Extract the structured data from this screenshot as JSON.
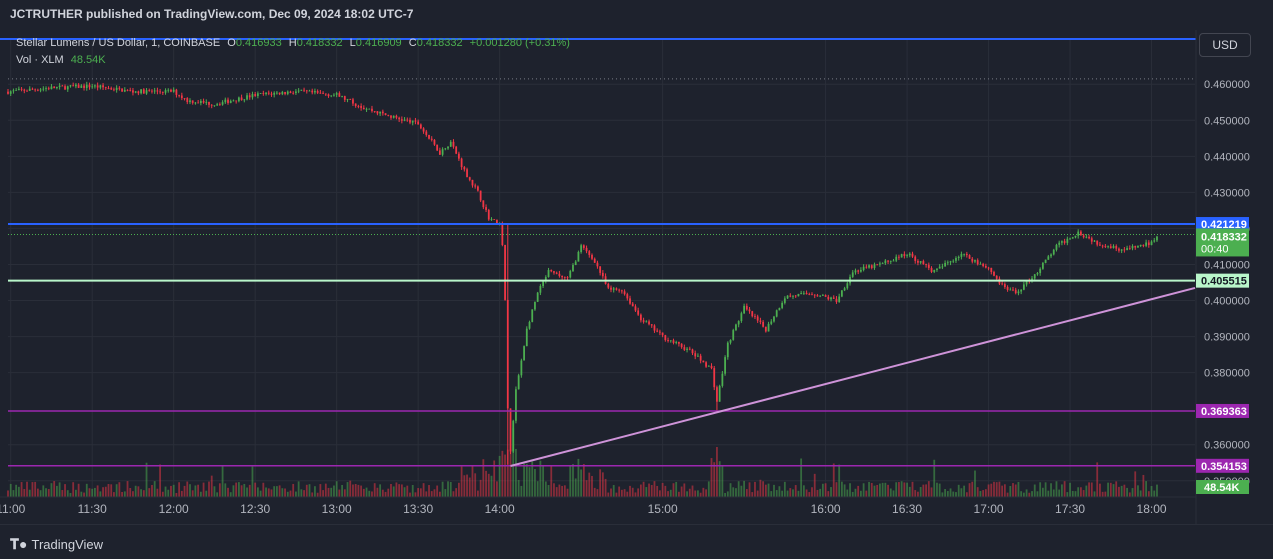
{
  "header": {
    "published": "JCTRUTHER published on TradingView.com, Dec 09, 2024 18:02 UTC-7"
  },
  "legend": {
    "symbol": "Stellar Lumens / US Dollar, 1, COINBASE",
    "o_label": "O",
    "o_value": "0.416933",
    "h_label": "H",
    "h_value": "0.418332",
    "l_label": "L",
    "l_value": "0.416909",
    "c_label": "C",
    "c_value": "0.418332",
    "change": "+0.001280 (+0.31%)",
    "vol_label": "Vol · XLM",
    "vol_value": "48.54K"
  },
  "currency_button": "USD",
  "footer": {
    "brand": "TradingView",
    "brand_icon": "tradingview-logo-icon"
  },
  "colors": {
    "up": "#4caf50",
    "down": "#f23645",
    "background": "#1e222d",
    "blue_line": "#2962ff",
    "green_line": "#b9f6ca",
    "purple_line": "#9c27b0",
    "trend_line": "#ce93d8"
  },
  "chart_data": {
    "type": "candlestick",
    "title": "Stellar Lumens / US Dollar, 1, COINBASE",
    "x_ticks": [
      "11:00",
      "11:30",
      "12:00",
      "12:30",
      "13:00",
      "13:30",
      "14:00",
      "15:00",
      "16:00",
      "16:30",
      "17:00",
      "17:30",
      "18:00"
    ],
    "y_ticks": [
      "0.460000",
      "0.450000",
      "0.440000",
      "0.430000",
      "0.420000",
      "0.410000",
      "0.400000",
      "0.390000",
      "0.380000",
      "0.360000",
      "0.350000"
    ],
    "ylim": [
      0.3455,
      0.4645
    ],
    "xlim": [
      "10:59",
      "18:16"
    ],
    "price_path": [
      [
        "11:00",
        0.458
      ],
      [
        "11:15",
        0.459
      ],
      [
        "11:30",
        0.4595
      ],
      [
        "11:45",
        0.458
      ],
      [
        "12:00",
        0.458
      ],
      [
        "12:05",
        0.4555
      ],
      [
        "12:15",
        0.4545
      ],
      [
        "12:30",
        0.457
      ],
      [
        "12:45",
        0.458
      ],
      [
        "13:00",
        0.457
      ],
      [
        "13:10",
        0.4535
      ],
      [
        "13:20",
        0.451
      ],
      [
        "13:30",
        0.449
      ],
      [
        "13:38",
        0.441
      ],
      [
        "13:42",
        0.444
      ],
      [
        "13:47",
        0.436
      ],
      [
        "13:52",
        0.43
      ],
      [
        "13:56",
        0.423
      ],
      [
        "14:00",
        0.421
      ],
      [
        "14:01",
        0.415
      ],
      [
        "14:02",
        0.4
      ],
      [
        "14:03",
        0.37
      ],
      [
        "14:04",
        0.358
      ],
      [
        "14:06",
        0.375
      ],
      [
        "14:10",
        0.392
      ],
      [
        "14:14",
        0.402
      ],
      [
        "14:18",
        0.408
      ],
      [
        "14:25",
        0.406
      ],
      [
        "14:30",
        0.415
      ],
      [
        "14:35",
        0.411
      ],
      [
        "14:40",
        0.403
      ],
      [
        "14:45",
        0.403
      ],
      [
        "14:52",
        0.395
      ],
      [
        "15:00",
        0.39
      ],
      [
        "15:10",
        0.386
      ],
      [
        "15:18",
        0.381
      ],
      [
        "15:20",
        0.372
      ],
      [
        "15:24",
        0.388
      ],
      [
        "15:30",
        0.398
      ],
      [
        "15:38",
        0.392
      ],
      [
        "15:45",
        0.401
      ],
      [
        "15:55",
        0.402
      ],
      [
        "16:04",
        0.4
      ],
      [
        "16:10",
        0.408
      ],
      [
        "16:20",
        0.41
      ],
      [
        "16:30",
        0.413
      ],
      [
        "16:40",
        0.408
      ],
      [
        "16:50",
        0.413
      ],
      [
        "17:00",
        0.409
      ],
      [
        "17:05",
        0.404
      ],
      [
        "17:10",
        0.402
      ],
      [
        "17:18",
        0.408
      ],
      [
        "17:25",
        0.415
      ],
      [
        "17:33",
        0.419
      ],
      [
        "17:40",
        0.416
      ],
      [
        "17:50",
        0.414
      ],
      [
        "18:00",
        0.416
      ],
      [
        "18:02",
        0.4183
      ]
    ],
    "horizontal_lines": [
      {
        "price": 0.421219,
        "label": "0.421219",
        "color": "#2962ff"
      },
      {
        "price": 0.405515,
        "label": "0.405515",
        "color": "#b9f6ca"
      },
      {
        "price": 0.369363,
        "label": "0.369363",
        "color": "#9c27b0"
      },
      {
        "price": 0.354153,
        "label": "0.354153",
        "color": "#9c27b0"
      }
    ],
    "top_line": {
      "color": "#2962ff"
    },
    "current_price": {
      "value": 0.418332,
      "label": "0.418332",
      "countdown": "00:40"
    },
    "reference_price": 0.4615,
    "trend_line": {
      "from": [
        "14:04",
        0.3541
      ],
      "to": [
        "18:16",
        0.4035
      ],
      "color": "#ce93d8"
    },
    "volume": {
      "label": "48.54K",
      "last": 48.54
    },
    "grid": true
  }
}
